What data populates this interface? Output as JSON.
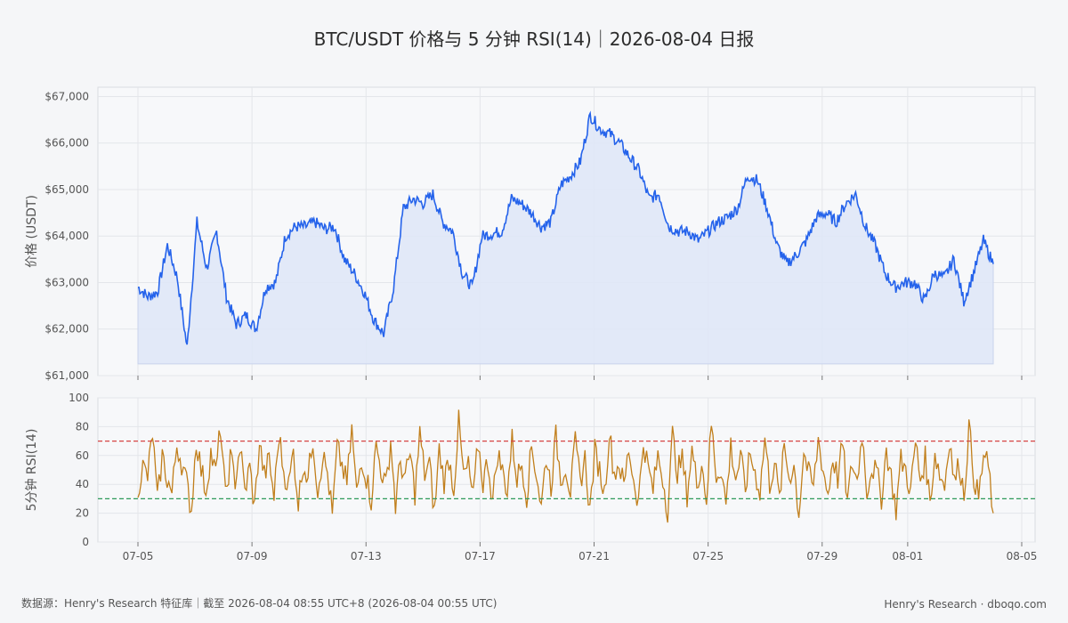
{
  "title": "BTC/USDT 价格与 5 分钟 RSI(14)｜2026-08-04 日报",
  "footer": {
    "source": "数据源：Henry's Research 特征库｜截至 2026-08-04 08:55 UTC+8 (2026-08-04 00:55 UTC)",
    "brand": "Henry's Research  ·  dboqo.com"
  },
  "colors": {
    "price_line": "#2563eb",
    "price_fill": "#dfe7f7",
    "rsi_line": "#c17f1c",
    "overbought": "#d64545",
    "oversold": "#2e9a5a",
    "grid": "#e4e6ea",
    "panel_bg": "#f7f8fa"
  },
  "chart_data": [
    {
      "type": "area",
      "ylabel": "价格 (USDT)",
      "ylim": [
        61000,
        67200
      ],
      "y_ticks": [
        "$61,000",
        "$62,000",
        "$63,000",
        "$64,000",
        "$65,000",
        "$66,000",
        "$67,000"
      ],
      "y_tick_values": [
        61000,
        62000,
        63000,
        64000,
        65000,
        66000,
        67000
      ],
      "x_ticks": [
        "07-05",
        "07-09",
        "07-13",
        "07-17",
        "07-21",
        "07-25",
        "07-29",
        "08-01",
        "08-05"
      ],
      "grid": true,
      "series": [
        {
          "x": [
            "07-05",
            "07-05",
            "07-06",
            "07-06",
            "07-06",
            "07-06",
            "07-07",
            "07-07",
            "07-07",
            "07-08",
            "07-08",
            "07-08",
            "07-09",
            "07-09",
            "07-09",
            "07-10",
            "07-10",
            "07-10",
            "07-11",
            "07-11",
            "07-12",
            "07-12",
            "07-12",
            "07-13",
            "07-13",
            "07-13",
            "07-14",
            "07-14",
            "07-14",
            "07-15",
            "07-15",
            "07-15",
            "07-16",
            "07-16",
            "07-16",
            "07-17",
            "07-17",
            "07-18",
            "07-18",
            "07-18",
            "07-19",
            "07-19",
            "07-19",
            "07-20",
            "07-20",
            "07-20",
            "07-21",
            "07-21",
            "07-21",
            "07-22",
            "07-22",
            "07-22",
            "07-23",
            "07-23",
            "07-23",
            "07-24",
            "07-24",
            "07-24",
            "07-25",
            "07-25",
            "07-26",
            "07-26",
            "07-26",
            "07-27",
            "07-27",
            "07-27",
            "07-28",
            "07-28",
            "07-28",
            "07-29",
            "07-29",
            "07-29",
            "07-30",
            "07-30",
            "07-30",
            "07-31",
            "07-31",
            "08-01",
            "08-01",
            "08-01",
            "08-02",
            "08-02",
            "08-02",
            "08-03",
            "08-03",
            "08-03",
            "08-04",
            "08-04"
          ],
          "values": [
            62900,
            62700,
            62800,
            63800,
            63100,
            61600,
            64300,
            63300,
            64100,
            62700,
            62100,
            62300,
            62000,
            62900,
            63000,
            64000,
            64200,
            64200,
            64300,
            64150,
            64200,
            63500,
            63200,
            62800,
            62200,
            61900,
            62900,
            64600,
            64800,
            64700,
            64900,
            64300,
            64100,
            63200,
            62900,
            64000,
            64050,
            64100,
            64800,
            64700,
            64500,
            64200,
            64300,
            65100,
            65300,
            65600,
            66600,
            66300,
            66200,
            66000,
            65700,
            65400,
            64800,
            64900,
            64200,
            64100,
            64100,
            63900,
            64100,
            64300,
            64400,
            64600,
            65300,
            65200,
            64600,
            63800,
            63400,
            63600,
            63900,
            64400,
            64500,
            64300,
            64700,
            64900,
            64200,
            63800,
            63200,
            62900,
            63000,
            63000,
            62600,
            63200,
            63100,
            63500,
            62600,
            63200,
            63900,
            63400
          ]
        }
      ]
    },
    {
      "type": "line",
      "ylabel": "5分钟 RSI(14)",
      "ylim": [
        0,
        100
      ],
      "y_ticks": [
        "0",
        "20",
        "40",
        "60",
        "80",
        "100"
      ],
      "y_tick_values": [
        0,
        20,
        40,
        60,
        80,
        100
      ],
      "x_ticks": [
        "07-05",
        "07-09",
        "07-13",
        "07-17",
        "07-21",
        "07-25",
        "07-29",
        "08-01",
        "08-05"
      ],
      "grid": true,
      "reference_lines": [
        70,
        30
      ],
      "series": [
        {
          "values": [
            38,
            52,
            45,
            76,
            28,
            60,
            44,
            33,
            68,
            55,
            41,
            22,
            71,
            50,
            36,
            62,
            47,
            80,
            30,
            58,
            43,
            66,
            35,
            52,
            24,
            69,
            46,
            57,
            31,
            74,
            49,
            39,
            63,
            27,
            55,
            44,
            72,
            36,
            60,
            48,
            18,
            65,
            53,
            40,
            78,
            33,
            59,
            45,
            29,
            67,
            51,
            38,
            70,
            25,
            56,
            43,
            61,
            34,
            75,
            47,
            54,
            20,
            64,
            42,
            58,
            37,
            83,
            46,
            52,
            30,
            69,
            41,
            57,
            28,
            62,
            49,
            36,
            71,
            44,
            55,
            32,
            66,
            48,
            24,
            60,
            39,
            73,
            45,
            53,
            35,
            68,
            42,
            58,
            21,
            63,
            50,
            34,
            76,
            47,
            55,
            38,
            65,
            43,
            28,
            70,
            51,
            36,
            60,
            45,
            22,
            74,
            49,
            57,
            33,
            64,
            41,
            55,
            30,
            82,
            46,
            52,
            26,
            67,
            44,
            58,
            37,
            61,
            48,
            35,
            72,
            40,
            56,
            29,
            66,
            45,
            53,
            19,
            63,
            47,
            38,
            71,
            50,
            33,
            59,
            44,
            68,
            27,
            55,
            42,
            76,
            36,
            52,
            48,
            31,
            64,
            45,
            22,
            57,
            50,
            35,
            69,
            43,
            58,
            28,
            62,
            47,
            39,
            73,
            41,
            55,
            33,
            80,
            46,
            30,
            60,
            52,
            20
          ]
        }
      ]
    }
  ]
}
